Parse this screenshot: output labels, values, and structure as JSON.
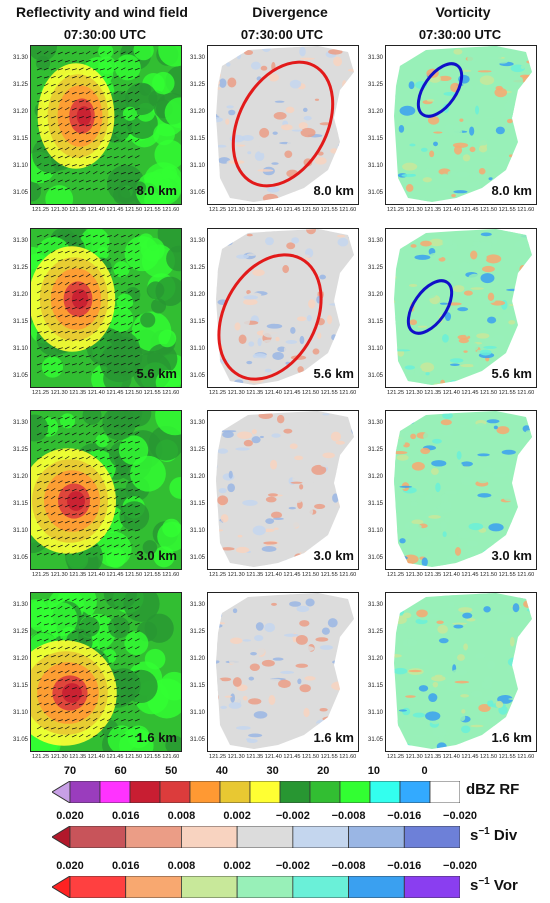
{
  "headers": {
    "col1": "Reflectivity and wind field",
    "col2": "Divergence",
    "col3": "Vorticity"
  },
  "times": {
    "col1": "07:30:00 UTC",
    "col2": "07:30:00 UTC",
    "col3": "07:30:00 UTC"
  },
  "rows": [
    {
      "altitude": "8.0 km"
    },
    {
      "altitude": "5.6 km"
    },
    {
      "altitude": "3.0 km"
    },
    {
      "altitude": "1.6 km"
    }
  ],
  "y_ticks": [
    "31.30",
    "31.25",
    "31.20",
    "31.15",
    "31.10",
    "31.05"
  ],
  "x_ticks": [
    "121.25",
    "121.30",
    "121.35",
    "121.40",
    "121.45",
    "121.50",
    "121.55",
    "121.60"
  ],
  "colorbars": {
    "rf": {
      "labels": [
        "70",
        "60",
        "50",
        "40",
        "30",
        "20",
        "10",
        "0"
      ],
      "unit": "dBZ",
      "name": "RF",
      "colors": [
        "#9a3dbd",
        "#ff33ff",
        "#c81e32",
        "#dc3c3c",
        "#ff9933",
        "#e8c832",
        "#ffff33",
        "#289632",
        "#32be32",
        "#32ff32",
        "#33ffee",
        "#33aaff",
        "#ffffff"
      ]
    },
    "div": {
      "labels": [
        "0.020",
        "0.016",
        "0.008",
        "0.002",
        "−0.002",
        "−0.008",
        "−0.016",
        "−0.020"
      ],
      "unit": "s",
      "unit_exp": "−1",
      "name": "Div",
      "arrow_color": "#b2182b",
      "colors": [
        "#c8545a",
        "#eb9d86",
        "#f8d3c0",
        "#dcdcdc",
        "#c4d6ee",
        "#9ab6e4",
        "#6d80d8"
      ]
    },
    "vor": {
      "labels": [
        "0.020",
        "0.016",
        "0.008",
        "0.002",
        "−0.002",
        "−0.008",
        "−0.016",
        "−0.020"
      ],
      "unit": "s",
      "unit_exp": "−1",
      "name": "Vor",
      "arrow_color": "#ff2222",
      "colors": [
        "#ff4040",
        "#f8a870",
        "#c8e89a",
        "#98f0b8",
        "#6af0d8",
        "#3aa0f0",
        "#8a3ef0"
      ]
    }
  },
  "annotations": {
    "div_ellipse_color": "#e21a1a",
    "vor_ellipse_color": "#1010c8"
  }
}
